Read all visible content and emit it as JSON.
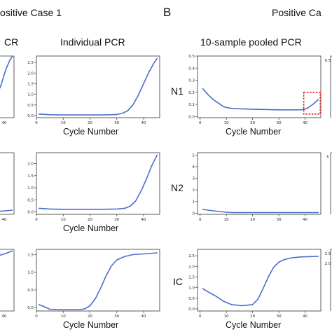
{
  "panel_a": {
    "title": "ositive Case 1",
    "col_left_title": "CR",
    "col_right_title": "Individual PCR"
  },
  "panel_b": {
    "letter": "B",
    "title": "Positive Ca",
    "col_title": "10-sample pooled PCR"
  },
  "row_labels": [
    "N1",
    "N2",
    "IC"
  ],
  "colors": {
    "curve": "#4a6fc9",
    "highlight": "#e02020",
    "axis": "#333333"
  },
  "chart_data": [
    {
      "type": "line",
      "panel": "A",
      "row": "N1",
      "column": "Individual PCR",
      "xlabel": "Cycle Number",
      "ylabel": "",
      "xlim": [
        0,
        46
      ],
      "ylim": [
        -0.1,
        2.8
      ],
      "xticks": [
        "0",
        "10",
        "20",
        "30",
        "40"
      ],
      "yticks": [
        "0.0",
        "0.5",
        "1.0",
        "1.5",
        "2.0",
        "2.5"
      ],
      "x": [
        1,
        5,
        10,
        15,
        20,
        25,
        28,
        30,
        32,
        34,
        36,
        38,
        40,
        42,
        44,
        45
      ],
      "y": [
        0.07,
        0.04,
        0.03,
        0.03,
        0.03,
        0.03,
        0.04,
        0.05,
        0.1,
        0.22,
        0.5,
        0.95,
        1.5,
        2.05,
        2.5,
        2.68
      ]
    },
    {
      "type": "line",
      "panel": "A",
      "row": "N2",
      "column": "Individual PCR",
      "xlabel": "Cycle Number",
      "ylabel": "",
      "xlim": [
        0,
        46
      ],
      "ylim": [
        -0.1,
        2.45
      ],
      "xticks": [
        "0",
        "10",
        "20",
        "30",
        "40"
      ],
      "yticks": [
        "0.0",
        "0.5",
        "1.0",
        "1.5",
        "2.0"
      ],
      "x": [
        1,
        5,
        10,
        15,
        20,
        25,
        30,
        33,
        35,
        37,
        39,
        41,
        43,
        45
      ],
      "y": [
        0.15,
        0.12,
        0.11,
        0.11,
        0.11,
        0.11,
        0.12,
        0.15,
        0.24,
        0.45,
        0.85,
        1.35,
        1.9,
        2.35
      ]
    },
    {
      "type": "line",
      "panel": "A",
      "row": "IC",
      "column": "Individual PCR",
      "xlabel": "Cycle Number",
      "ylabel": "",
      "xlim": [
        0,
        46
      ],
      "ylim": [
        -0.1,
        1.65
      ],
      "xticks": [
        "0",
        "10",
        "20",
        "30",
        "40"
      ],
      "yticks": [
        "0.0",
        "0.5",
        "1.0",
        "1.5"
      ],
      "x": [
        1,
        3,
        5,
        8,
        12,
        16,
        18,
        20,
        22,
        24,
        26,
        28,
        30,
        33,
        36,
        40,
        45
      ],
      "y": [
        0.08,
        0.02,
        -0.05,
        -0.06,
        -0.06,
        -0.06,
        -0.04,
        0.05,
        0.25,
        0.55,
        0.9,
        1.18,
        1.35,
        1.45,
        1.5,
        1.52,
        1.55
      ]
    },
    {
      "type": "line",
      "panel": "B",
      "row": "N1",
      "column": "10-sample pooled PCR",
      "xlabel": "Cycle Number",
      "ylabel": "",
      "xlim": [
        -1,
        46
      ],
      "ylim": [
        -0.01,
        0.5
      ],
      "xticks": [
        "0",
        "10",
        "20",
        "30",
        "40"
      ],
      "yticks": [
        "0.0",
        "0.1",
        "0.2",
        "0.3",
        "0.4",
        "0.5"
      ],
      "x": [
        1,
        3,
        5,
        7,
        9,
        11,
        13,
        20,
        30,
        38,
        40,
        41,
        42,
        43,
        44,
        45
      ],
      "y": [
        0.23,
        0.18,
        0.14,
        0.11,
        0.08,
        0.07,
        0.065,
        0.06,
        0.055,
        0.055,
        0.06,
        0.07,
        0.085,
        0.1,
        0.12,
        0.14
      ],
      "annotations": [
        "highlight box around cycles 40-45"
      ]
    },
    {
      "type": "line",
      "panel": "B",
      "row": "N2",
      "column": "10-sample pooled PCR",
      "xlabel": "",
      "ylabel": "",
      "xlim": [
        -1,
        46
      ],
      "ylim": [
        -0.1,
        5.2
      ],
      "xticks": [
        "0",
        "10",
        "20",
        "30",
        "40"
      ],
      "yticks": [
        "0",
        "1",
        "2",
        "3",
        "4",
        "5"
      ],
      "x": [
        1,
        5,
        10,
        12,
        20,
        30,
        40,
        45
      ],
      "y": [
        0.32,
        0.2,
        0.08,
        0.05,
        0.05,
        0.05,
        0.05,
        0.05
      ]
    },
    {
      "type": "line",
      "panel": "B",
      "row": "IC",
      "column": "10-sample pooled PCR",
      "xlabel": "Cycle Number",
      "ylabel": "",
      "xlim": [
        -1,
        46
      ],
      "ylim": [
        -0.1,
        2.8
      ],
      "xticks": [
        "0",
        "10",
        "20",
        "30",
        "40"
      ],
      "yticks": [
        "0.0",
        "0.5",
        "1.0",
        "1.5",
        "2.0",
        "2.5"
      ],
      "x": [
        1,
        3,
        6,
        9,
        12,
        16,
        20,
        22,
        24,
        26,
        28,
        30,
        32,
        35,
        38,
        42,
        45
      ],
      "y": [
        0.95,
        0.8,
        0.6,
        0.35,
        0.2,
        0.15,
        0.2,
        0.45,
        0.95,
        1.5,
        1.95,
        2.2,
        2.32,
        2.4,
        2.44,
        2.46,
        2.47
      ]
    }
  ],
  "cropped_fragments": {
    "left_column_yticks": [
      [
        "2.5",
        "2.0",
        "1.5",
        "1.0",
        "0.5",
        "0.0"
      ],
      [],
      [
        "2.5",
        "2.0",
        "1.5",
        "1.0",
        "0.5",
        "0.0"
      ]
    ],
    "left_column_xtick": "40",
    "right_edge_yticks": [
      [
        "0.5"
      ],
      [
        "5"
      ],
      [
        "2.5",
        "2.0"
      ]
    ]
  }
}
